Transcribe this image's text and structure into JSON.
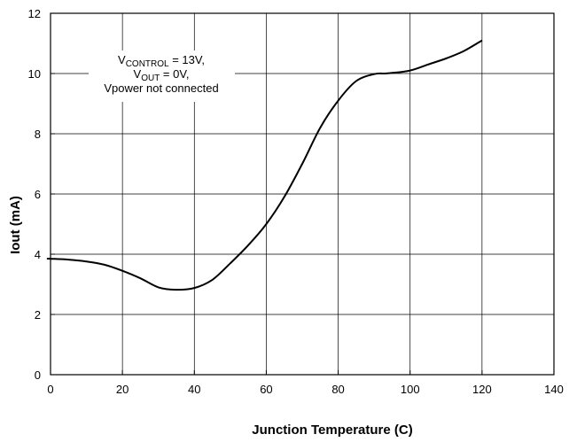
{
  "chart_data": {
    "type": "line",
    "xlabel": "Junction Temperature (C)",
    "ylabel": "Iout (mA)",
    "xlim": [
      0,
      140
    ],
    "ylim": [
      0,
      12
    ],
    "xticks": [
      0,
      20,
      40,
      60,
      80,
      100,
      120,
      140
    ],
    "yticks": [
      0,
      2,
      4,
      6,
      8,
      10,
      12
    ],
    "grid": true,
    "series": [
      {
        "x": [
          -2,
          0,
          5,
          10,
          15,
          20,
          25,
          30,
          35,
          40,
          45,
          50,
          55,
          60,
          65,
          70,
          75,
          80,
          85,
          90,
          93,
          95,
          100,
          105,
          110,
          115,
          120
        ],
        "values": [
          3.85,
          3.85,
          3.82,
          3.76,
          3.65,
          3.45,
          3.2,
          2.9,
          2.82,
          2.88,
          3.15,
          3.7,
          4.3,
          5.0,
          5.9,
          7.0,
          8.2,
          9.1,
          9.75,
          9.98,
          10.0,
          10.02,
          10.1,
          10.3,
          10.5,
          10.75,
          11.1
        ]
      }
    ],
    "annotation": {
      "line1_main": "V",
      "line1_sub": "CONTROL",
      "line1_rest": " = 13V,",
      "line2_main": "V",
      "line2_sub": "OUT",
      "line2_rest": " = 0V,",
      "line3": "Vpower not connected"
    }
  }
}
